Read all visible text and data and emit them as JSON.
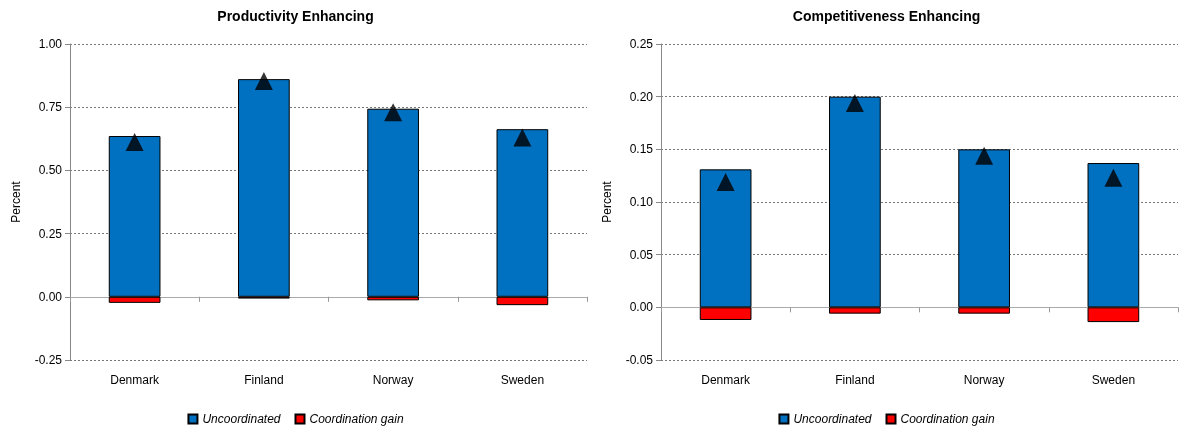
{
  "chart_data": [
    {
      "type": "bar",
      "title": "Productivity Enhancing",
      "ylabel": "Percent",
      "categories": [
        "Denmark",
        "Finland",
        "Norway",
        "Sweden"
      ],
      "stacked": true,
      "series": [
        {
          "name": "Uncoordinated",
          "color": "#0070c0",
          "values": [
            0.636,
            0.861,
            0.744,
            0.663
          ]
        },
        {
          "name": "Coordination gain",
          "color": "#ff0000",
          "values": [
            -0.024,
            -0.007,
            -0.014,
            -0.033
          ]
        },
        {
          "type": "scatter",
          "color": "#000000",
          "marker": "triangle",
          "x": [
            "Denmark",
            "Finland",
            "Norway",
            "Sweden"
          ],
          "values": [
            0.612,
            0.854,
            0.73,
            0.63
          ]
        }
      ],
      "ylim": [
        -0.25,
        1.0
      ],
      "yticks": [
        {
          "value": -0.25,
          "label": "-0.25"
        },
        {
          "value": 0,
          "label": "0.00"
        },
        {
          "value": 0.25,
          "label": "0.25"
        },
        {
          "value": 0.5,
          "label": "0.50"
        },
        {
          "value": 0.75,
          "label": "0.75"
        },
        {
          "value": 1.0,
          "label": "1.00"
        }
      ],
      "grid": "y",
      "legend": "bottom"
    },
    {
      "type": "bar",
      "title": "Competitiveness Enhancing",
      "ylabel": "Percent",
      "categories": [
        "Denmark",
        "Finland",
        "Norway",
        "Sweden"
      ],
      "stacked": true,
      "series": [
        {
          "name": "Uncoordinated",
          "color": "#0070c0",
          "values": [
            0.131,
            0.2,
            0.15,
            0.137
          ]
        },
        {
          "name": "Coordination gain",
          "color": "#ff0000",
          "values": [
            -0.012,
            -0.006,
            -0.006,
            -0.014
          ]
        },
        {
          "type": "scatter",
          "color": "#000000",
          "marker": "triangle",
          "x": [
            "Denmark",
            "Finland",
            "Norway",
            "Sweden"
          ],
          "values": [
            0.119,
            0.194,
            0.144,
            0.123
          ]
        }
      ],
      "ylim": [
        -0.05,
        0.25
      ],
      "yticks": [
        {
          "value": -0.05,
          "label": "-0.05"
        },
        {
          "value": 0,
          "label": "0.00"
        },
        {
          "value": 0.05,
          "label": "0.05"
        },
        {
          "value": 0.1,
          "label": "0.10"
        },
        {
          "value": 0.15,
          "label": "0.15"
        },
        {
          "value": 0.2,
          "label": "0.20"
        },
        {
          "value": 0.25,
          "label": "0.25"
        }
      ],
      "grid": "y",
      "legend": "bottom"
    }
  ]
}
